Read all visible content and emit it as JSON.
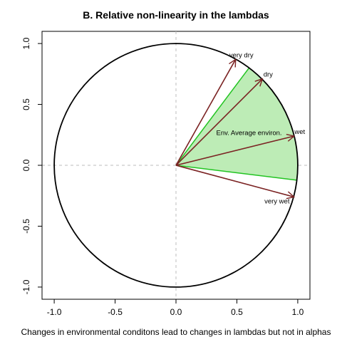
{
  "chart_data": {
    "type": "scatter",
    "title": "B. Relative non-linearity in the lambdas",
    "xlabel": "Changes in environmental conditons lead to changes in lambdas but not in alphas",
    "ylabel": "",
    "xlim": [
      -1.1,
      1.1
    ],
    "ylim": [
      -1.1,
      1.1
    ],
    "x_ticks": [
      -1.0,
      -0.5,
      0.0,
      0.5,
      1.0
    ],
    "y_ticks": [
      -1.0,
      -0.5,
      0.0,
      0.5,
      1.0
    ],
    "x_tick_labels": [
      "-1.0",
      "-0.5",
      "0.0",
      "0.5",
      "1.0"
    ],
    "y_tick_labels": [
      "-1.0",
      "-0.5",
      "0.0",
      "0.5",
      "1.0"
    ],
    "grid": false,
    "reference_lines": [
      {
        "orientation": "horizontal",
        "value": 0,
        "style": "dashed",
        "color": "#bdbdbd"
      },
      {
        "orientation": "vertical",
        "value": 0,
        "style": "dashed",
        "color": "#bdbdbd"
      }
    ],
    "unit_circle": {
      "center": [
        0,
        0
      ],
      "radius": 1.0,
      "color": "#000000"
    },
    "shaded_sector": {
      "fill": "#bdecb6",
      "stroke": "#22c422",
      "from": [
        0.6,
        0.8
      ],
      "to": [
        0.992,
        -0.122
      ]
    },
    "arrows": [
      {
        "label": "very dry",
        "x": 0.49,
        "y": 0.87
      },
      {
        "label": "dry",
        "x": 0.71,
        "y": 0.71
      },
      {
        "label": "wet",
        "x": 0.97,
        "y": 0.24
      },
      {
        "label": "very wet",
        "x": 0.97,
        "y": -0.26
      }
    ],
    "arrow_color": "#7b2323",
    "annotations": [
      {
        "text": "Env. Average environ.",
        "x": 0.6,
        "y": 0.25
      }
    ]
  }
}
